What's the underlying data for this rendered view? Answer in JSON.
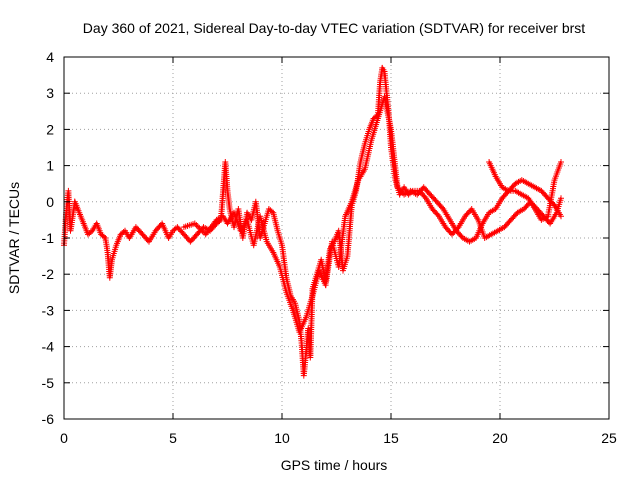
{
  "colors": {
    "series": "#ff0000",
    "grid": "#a0a0a0",
    "axis": "#000000",
    "background": "#ffffff"
  },
  "chart_data": {
    "type": "scatter",
    "title": "Day 360 of 2021, Sidereal Day-to-day VTEC variation (SDTVAR) for receiver brst",
    "xlabel": "GPS time / hours",
    "ylabel": "SDTVAR / TECUs",
    "xlim": [
      0,
      25
    ],
    "ylim": [
      -6,
      4
    ],
    "xticks": [
      0,
      5,
      10,
      15,
      20,
      25
    ],
    "yticks": [
      -6,
      -5,
      -4,
      -3,
      -2,
      -1,
      0,
      1,
      2,
      3,
      4
    ],
    "grid": true,
    "marker": "+",
    "series": [
      {
        "name": "SDTVAR",
        "x": [
          0.0,
          0.1,
          0.2,
          0.3,
          0.4,
          0.5,
          0.7,
          0.9,
          1.1,
          1.3,
          1.5,
          1.7,
          1.9,
          2.0,
          2.1,
          2.2,
          2.4,
          2.6,
          2.8,
          3.0,
          3.3,
          3.6,
          3.9,
          4.2,
          4.5,
          4.8,
          5.0,
          5.2,
          5.5,
          5.8,
          6.1,
          6.4,
          6.7,
          7.0,
          7.2,
          7.4,
          7.5,
          7.6,
          7.8,
          8.0,
          8.2,
          8.4,
          8.6,
          8.8,
          9.0,
          9.2,
          9.4,
          9.6,
          9.8,
          10.0,
          10.2,
          10.4,
          10.6,
          10.8,
          10.9,
          11.0,
          11.1,
          11.2,
          11.3,
          11.4,
          11.6,
          11.8,
          12.0,
          12.2,
          12.4,
          12.6,
          12.8,
          13.0,
          13.2,
          13.4,
          13.6,
          13.8,
          14.0,
          14.2,
          14.4,
          14.5,
          14.6,
          14.7,
          14.8,
          14.9,
          15.0,
          15.2,
          15.4,
          15.6,
          15.8,
          16.0,
          16.3,
          16.6,
          16.9,
          17.2,
          17.5,
          17.8,
          18.1,
          18.4,
          18.7,
          19.0,
          19.3,
          19.6,
          19.9,
          20.2,
          20.5,
          20.8,
          21.1,
          21.4,
          21.7,
          22.0,
          22.3,
          22.6,
          22.8
        ],
        "y": [
          -1.2,
          -0.3,
          0.3,
          -0.8,
          -0.4,
          0.0,
          -0.3,
          -0.6,
          -0.9,
          -0.8,
          -0.6,
          -0.9,
          -1.0,
          -1.4,
          -2.1,
          -1.6,
          -1.2,
          -0.9,
          -0.8,
          -1.0,
          -0.7,
          -0.9,
          -1.1,
          -0.8,
          -0.6,
          -1.0,
          -0.8,
          -0.7,
          -0.9,
          -1.1,
          -0.9,
          -0.7,
          -0.8,
          -0.6,
          -0.5,
          1.1,
          0.3,
          -0.2,
          -0.7,
          -0.2,
          -1.0,
          -0.3,
          -0.5,
          0.0,
          -1.0,
          -0.6,
          -0.2,
          -0.3,
          -0.8,
          -1.2,
          -2.1,
          -2.6,
          -2.8,
          -3.3,
          -3.9,
          -4.8,
          -4.2,
          -3.5,
          -4.3,
          -2.4,
          -2.0,
          -1.6,
          -2.2,
          -1.3,
          -1.1,
          -0.8,
          -1.9,
          -1.5,
          -0.1,
          0.3,
          1.1,
          1.6,
          2.0,
          2.3,
          2.4,
          3.3,
          3.7,
          3.6,
          3.0,
          2.4,
          1.5,
          0.6,
          0.2,
          0.4,
          0.2,
          0.3,
          0.3,
          0.1,
          -0.2,
          -0.4,
          -0.7,
          -0.9,
          -0.7,
          -0.4,
          -0.2,
          -0.5,
          -1.0,
          -0.9,
          -0.8,
          -0.7,
          -0.5,
          -0.3,
          -0.2,
          0.0,
          -0.2,
          -0.4,
          -0.6,
          -0.3,
          0.1
        ],
        "x2": [
          5.5,
          6.0,
          6.5,
          7.0,
          7.3,
          7.5,
          7.8,
          8.1,
          8.4,
          8.7,
          9.0,
          9.3,
          9.6,
          9.9,
          10.2,
          10.5,
          10.8,
          11.1,
          11.4,
          11.7,
          12.0,
          12.3,
          12.6,
          12.9,
          13.2,
          13.5,
          13.8,
          14.1,
          14.4,
          14.7,
          15.0,
          15.3,
          15.6,
          15.9,
          16.2,
          16.5,
          16.8,
          17.1,
          17.4,
          17.7,
          18.0,
          18.3,
          18.6,
          18.9,
          19.2,
          19.5,
          19.8,
          20.1,
          20.4,
          20.7,
          21.0,
          21.3,
          21.6,
          21.9,
          22.2,
          22.5,
          22.8
        ],
        "y2": [
          -0.7,
          -0.6,
          -0.9,
          -0.5,
          -0.4,
          -0.6,
          -0.3,
          -0.8,
          -0.5,
          -1.2,
          -0.4,
          -1.1,
          -1.4,
          -1.8,
          -2.5,
          -3.0,
          -3.6,
          -3.2,
          -2.6,
          -1.9,
          -2.3,
          -1.1,
          -1.8,
          -0.4,
          0.0,
          0.6,
          0.9,
          1.7,
          2.3,
          2.9,
          2.0,
          0.4,
          0.2,
          0.3,
          0.2,
          0.4,
          0.2,
          0.0,
          -0.2,
          -0.5,
          -0.8,
          -1.0,
          -1.1,
          -1.0,
          -0.6,
          -0.3,
          -0.2,
          0.1,
          0.3,
          0.5,
          0.6,
          0.5,
          0.4,
          0.3,
          0.1,
          -0.1,
          -0.4
        ],
        "x3": [
          19.5,
          19.8,
          20.1,
          20.4,
          20.7,
          21.0,
          21.3,
          21.6,
          21.9,
          22.2,
          22.5,
          22.8
        ],
        "y3": [
          1.1,
          0.7,
          0.4,
          0.3,
          0.3,
          0.2,
          0.1,
          -0.2,
          -0.5,
          -0.4,
          0.6,
          1.1
        ]
      }
    ]
  }
}
